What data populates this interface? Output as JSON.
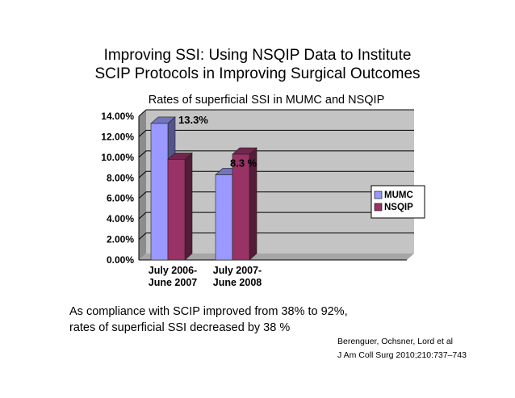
{
  "slide": {
    "title_line1": "Improving SSI: Using NSQIP Data to Institute",
    "title_line2": "SCIP Protocols in Improving Surgical Outcomes",
    "conclusion_line1": "As compliance with SCIP improved from 38% to 92%,",
    "conclusion_line2": "rates of superficial SSI decreased by 38 %",
    "citation_line1": "Berenguer, Ochsner,  Lord et al",
    "citation_line2": "J Am Coll Surg 2010;210:737–743"
  },
  "chart_data": {
    "type": "bar",
    "title": "Rates of superficial SSI in MUMC and NSQIP",
    "categories": [
      [
        "July 2006-",
        "June 2007"
      ],
      [
        "July 2007-",
        "June 2008"
      ]
    ],
    "series": [
      {
        "name": "MUMC",
        "values": [
          13.3,
          8.3
        ],
        "color": "#9999ff"
      },
      {
        "name": "NSQIP",
        "values": [
          9.8,
          10.3
        ],
        "color": "#993366"
      }
    ],
    "ylim": [
      0,
      14
    ],
    "yticks": [
      "0.00%",
      "2.00%",
      "4.00%",
      "6.00%",
      "8.00%",
      "10.00%",
      "12.00%",
      "14.00%"
    ],
    "data_labels": [
      "13.3%",
      "8.3 %"
    ],
    "legend_position": "right",
    "grid": true
  }
}
